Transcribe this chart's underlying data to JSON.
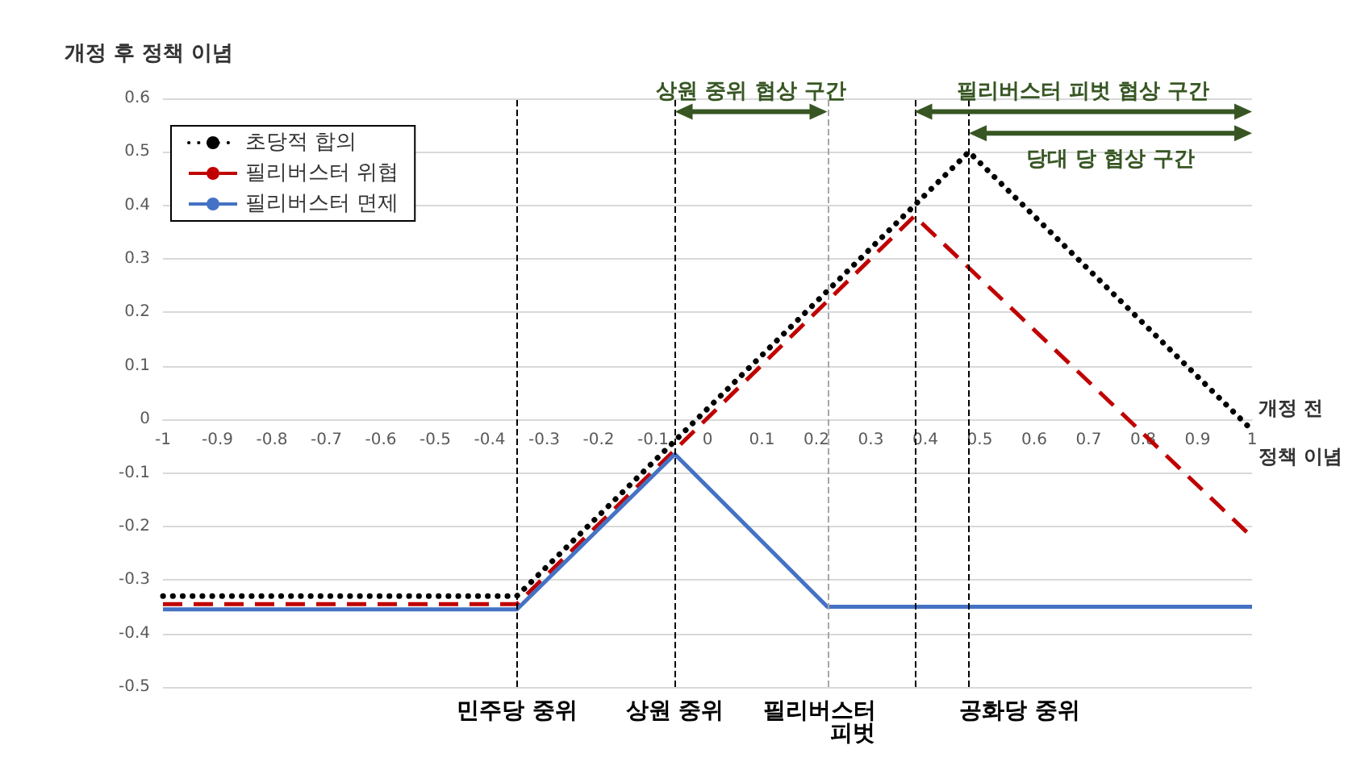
{
  "chart_data": {
    "type": "line",
    "ylabel": "개정 후 정책 이념",
    "xlabel": "개정 전 정책 이념",
    "xlim": [
      -1,
      1
    ],
    "xticks": [
      -1,
      -0.9,
      -0.8,
      -0.7,
      -0.6,
      -0.5,
      -0.4,
      -0.3,
      -0.2,
      -0.1,
      0,
      0.1,
      0.2,
      0.3,
      0.4,
      0.5,
      0.6,
      0.7,
      0.8,
      0.9,
      1
    ],
    "ylim": [
      -0.5,
      0.6
    ],
    "yticks": [
      -0.5,
      -0.4,
      -0.3,
      -0.2,
      -0.1,
      0,
      0.1,
      0.2,
      0.3,
      0.4,
      0.5,
      0.6
    ],
    "grid": "y",
    "legend": "top left",
    "marker": "none",
    "series": [
      {
        "name": "초당적 합의",
        "color": "#000000",
        "line_style": "dotted",
        "x": [
          -1,
          -0.35,
          0.48,
          1
        ],
        "values": [
          -0.33,
          -0.33,
          0.5,
          -0.02
        ]
      },
      {
        "name": "필리버스터 위협",
        "color": "#c00000",
        "line_style": "dashed",
        "x": [
          -1,
          -0.35,
          0.38,
          1
        ],
        "values": [
          -0.345,
          -0.345,
          0.38,
          -0.22
        ]
      },
      {
        "name": "필리버스터 면제",
        "color": "#4472c4",
        "line_style": "solid",
        "x": [
          -1,
          -0.35,
          -0.06,
          0.22,
          1
        ],
        "values": [
          -0.355,
          -0.355,
          -0.065,
          -0.35,
          -0.35
        ]
      }
    ],
    "ref_lines": [
      {
        "axis": "x",
        "value": -0.35,
        "label": "민주당 중위",
        "color": "#000000",
        "line_style": "dashed"
      },
      {
        "axis": "x",
        "value": -0.06,
        "label": "상원 중위",
        "color": "#000000",
        "line_style": "dashed"
      },
      {
        "axis": "x",
        "value": 0.22,
        "label": null,
        "color": "#a6a6a6",
        "line_style": "dashed"
      },
      {
        "axis": "x",
        "value": 0.38,
        "label": "필리버스터 피벗",
        "color": "#000000",
        "line_style": "dashed"
      },
      {
        "axis": "x",
        "value": 0.48,
        "label": "공화당 중위",
        "color": "#000000",
        "line_style": "dashed"
      }
    ],
    "annotations": [
      {
        "text": "상원 중위 협상 구간",
        "x": -0.06,
        "y": 0.575
      },
      {
        "text": "필리버스터 피벗 협상 구간",
        "x": 0.38,
        "y": 0.575
      },
      {
        "text": "당대 당 협상 구간",
        "x": 0.48,
        "y": 0.535
      }
    ]
  }
}
